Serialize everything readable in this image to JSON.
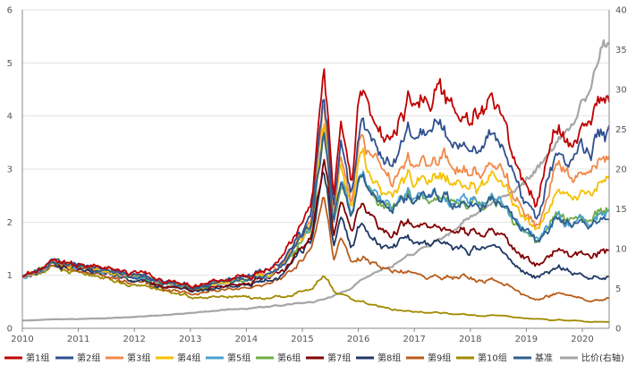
{
  "chart_data": {
    "type": "line",
    "title": "",
    "xlabel": "",
    "ylabel": "",
    "ylim": [
      0,
      6
    ],
    "y2lim": [
      0,
      40
    ],
    "x_ticks": [
      "2010",
      "2011",
      "2012",
      "2013",
      "2014",
      "2015",
      "2016",
      "2017",
      "2018",
      "2019",
      "2020"
    ],
    "y_ticks": [
      "0",
      "1",
      "2",
      "3",
      "4",
      "5",
      "6"
    ],
    "y2_ticks": [
      "0",
      "5",
      "10",
      "15",
      "20",
      "25",
      "30",
      "35",
      "40"
    ],
    "grid": true,
    "legend_position": "bottom",
    "anchor_years": [
      2010.0,
      2010.8,
      2011.5,
      2012.5,
      2013.2,
      2014.0,
      2014.6,
      2015.2,
      2015.45,
      2015.62,
      2015.75,
      2015.95,
      2016.1,
      2016.5,
      2016.95,
      2017.5,
      2018.0,
      2018.5,
      2018.95,
      2019.3,
      2019.6,
      2019.95,
      2020.2,
      2020.5
    ],
    "series": [
      {
        "name": "第1组",
        "color": "#c00000",
        "axis": "left",
        "values": [
          1.0,
          1.28,
          1.1,
          0.9,
          0.8,
          1.0,
          1.3,
          2.2,
          4.75,
          2.4,
          3.6,
          2.6,
          4.5,
          3.6,
          4.2,
          4.6,
          3.9,
          4.1,
          3.0,
          2.4,
          3.8,
          3.5,
          3.9,
          4.25
        ]
      },
      {
        "name": "第2组",
        "color": "#2f4f8f",
        "axis": "left",
        "values": [
          1.0,
          1.25,
          1.08,
          0.88,
          0.78,
          0.97,
          1.25,
          2.1,
          4.5,
          2.3,
          3.3,
          2.4,
          3.9,
          3.2,
          3.6,
          3.85,
          3.35,
          3.5,
          2.7,
          2.1,
          3.25,
          3.1,
          3.35,
          3.65
        ]
      },
      {
        "name": "第3组",
        "color": "#f08a4b",
        "axis": "left",
        "values": [
          1.0,
          1.24,
          1.06,
          0.86,
          0.76,
          0.95,
          1.22,
          2.0,
          4.3,
          2.2,
          3.1,
          2.3,
          3.6,
          2.9,
          3.1,
          3.35,
          2.9,
          3.0,
          2.4,
          1.9,
          2.95,
          2.85,
          2.95,
          3.15
        ]
      },
      {
        "name": "第4组",
        "color": "#f5c000",
        "axis": "left",
        "values": [
          1.0,
          1.23,
          1.05,
          0.85,
          0.75,
          0.93,
          1.2,
          1.95,
          4.0,
          2.1,
          2.9,
          2.2,
          3.2,
          2.6,
          2.8,
          3.0,
          2.6,
          2.7,
          2.2,
          1.8,
          2.6,
          2.5,
          2.6,
          2.75
        ]
      },
      {
        "name": "第5组",
        "color": "#4aa0d0",
        "axis": "left",
        "values": [
          1.0,
          1.22,
          1.04,
          0.84,
          0.74,
          0.92,
          1.18,
          1.9,
          3.8,
          2.0,
          2.7,
          2.1,
          2.9,
          2.35,
          2.5,
          2.6,
          2.3,
          2.35,
          2.0,
          1.7,
          2.1,
          2.0,
          2.05,
          2.15
        ]
      },
      {
        "name": "第6组",
        "color": "#70ad47",
        "axis": "left",
        "values": [
          1.0,
          1.21,
          1.03,
          0.83,
          0.73,
          0.91,
          1.16,
          1.85,
          3.6,
          1.95,
          2.6,
          2.05,
          2.85,
          2.3,
          2.45,
          2.55,
          2.25,
          2.3,
          1.95,
          1.65,
          2.15,
          2.05,
          2.1,
          2.2
        ]
      },
      {
        "name": "第7组",
        "color": "#800000",
        "axis": "left",
        "values": [
          1.0,
          1.2,
          1.01,
          0.8,
          0.7,
          0.87,
          1.1,
          1.7,
          3.2,
          1.7,
          2.3,
          1.75,
          2.3,
          1.85,
          1.95,
          2.0,
          1.75,
          1.8,
          1.45,
          1.2,
          1.5,
          1.4,
          1.35,
          1.45
        ]
      },
      {
        "name": "第8组",
        "color": "#1f3864",
        "axis": "left",
        "values": [
          1.0,
          1.18,
          0.99,
          0.78,
          0.68,
          0.83,
          1.05,
          1.6,
          2.9,
          1.55,
          2.0,
          1.5,
          1.9,
          1.55,
          1.65,
          1.7,
          1.45,
          1.5,
          1.15,
          0.95,
          1.15,
          1.05,
          0.95,
          0.95
        ]
      },
      {
        "name": "第9组",
        "color": "#b85c1a",
        "axis": "left",
        "values": [
          1.0,
          1.15,
          0.95,
          0.74,
          0.64,
          0.78,
          0.97,
          1.45,
          2.5,
          1.3,
          1.6,
          1.2,
          1.3,
          1.15,
          1.05,
          1.0,
          0.95,
          0.85,
          0.7,
          0.55,
          0.65,
          0.6,
          0.52,
          0.55
        ]
      },
      {
        "name": "第10组",
        "color": "#a08a00",
        "axis": "left",
        "values": [
          1.0,
          1.1,
          0.9,
          0.7,
          0.55,
          0.6,
          0.62,
          0.75,
          1.0,
          0.7,
          0.62,
          0.55,
          0.5,
          0.4,
          0.33,
          0.3,
          0.25,
          0.23,
          0.2,
          0.18,
          0.16,
          0.15,
          0.13,
          0.12
        ]
      },
      {
        "name": "基准",
        "color": "#2e5f8f",
        "axis": "left",
        "values": [
          1.0,
          1.22,
          1.04,
          0.84,
          0.74,
          0.92,
          1.18,
          1.88,
          3.7,
          1.98,
          2.65,
          2.08,
          2.88,
          2.32,
          2.47,
          2.57,
          2.27,
          2.32,
          1.97,
          1.67,
          2.05,
          1.95,
          2.0,
          2.05
        ]
      },
      {
        "name": "比价(右轴)",
        "color": "#a6a6a6",
        "axis": "right",
        "values": [
          1.0,
          1.15,
          1.25,
          1.6,
          2.0,
          2.5,
          2.9,
          3.3,
          3.6,
          4.0,
          4.4,
          5.0,
          6.0,
          7.5,
          9.0,
          11.0,
          13.5,
          15.5,
          17.5,
          20.0,
          22.5,
          26.0,
          29.0,
          36.0
        ]
      }
    ]
  }
}
